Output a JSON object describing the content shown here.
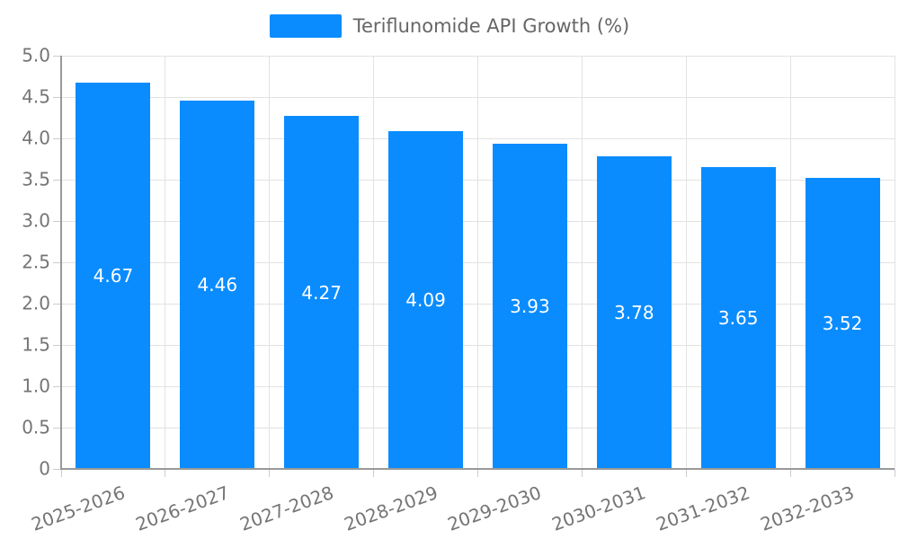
{
  "chart_data": {
    "type": "bar",
    "legend": "Teriflunomide API Growth (%)",
    "categories": [
      "2025-2026",
      "2026-2027",
      "2027-2028",
      "2028-2029",
      "2029-2030",
      "2030-2031",
      "2031-2032",
      "2032-2033"
    ],
    "values": [
      4.67,
      4.46,
      4.27,
      4.09,
      3.93,
      3.78,
      3.65,
      3.52
    ],
    "value_labels": [
      "4.67",
      "4.46",
      "4.27",
      "4.09",
      "3.93",
      "3.78",
      "3.65",
      "3.52"
    ],
    "y_ticks": [
      "0",
      "0.5",
      "1.0",
      "1.5",
      "2.0",
      "2.5",
      "3.0",
      "3.5",
      "4.0",
      "4.5",
      "5.0"
    ],
    "ylim": [
      0,
      5
    ],
    "xlabel": "",
    "ylabel": "",
    "grid": "on",
    "legend_position": "top-center",
    "x_label_rotation_deg": -20,
    "colors": {
      "bar": "#0a8cff",
      "grid": "#e2e2e2",
      "axis": "#999999",
      "tick_mark": "#cccccc",
      "tick_text": "#757575",
      "legend_text": "#666666",
      "value_text": "#ffffff"
    }
  }
}
